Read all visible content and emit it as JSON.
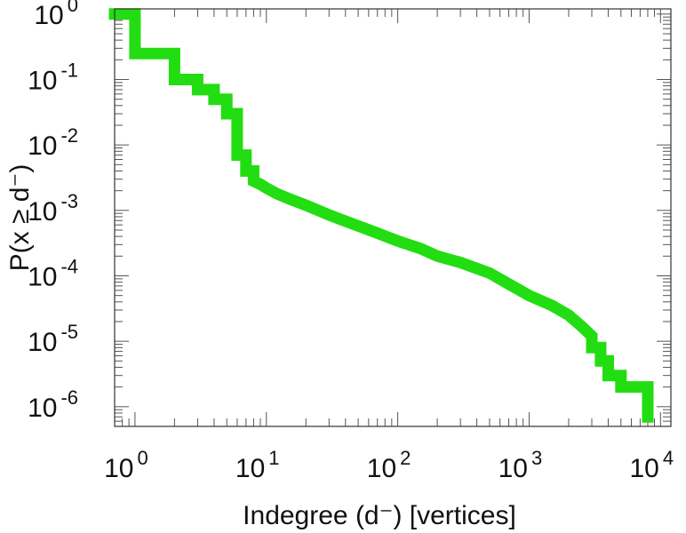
{
  "chart_data": {
    "type": "line",
    "xlabel": "Indegree (d⁻) [vertices]",
    "ylabel": "P(x ≥ d⁻)",
    "xscale": "log",
    "yscale": "log",
    "xlim": [
      0.7,
      12000
    ],
    "ylim": [
      5e-07,
      1.2
    ],
    "x_ticks": [
      {
        "value": 1,
        "base": "10",
        "exp": "0"
      },
      {
        "value": 10,
        "base": "10",
        "exp": "1"
      },
      {
        "value": 100,
        "base": "10",
        "exp": "2"
      },
      {
        "value": 1000,
        "base": "10",
        "exp": "3"
      },
      {
        "value": 10000,
        "base": "10",
        "exp": "4"
      }
    ],
    "y_ticks": [
      {
        "value": 1,
        "base": "10",
        "exp": "0"
      },
      {
        "value": 0.1,
        "base": "10",
        "exp": "-1"
      },
      {
        "value": 0.01,
        "base": "10",
        "exp": "-2"
      },
      {
        "value": 0.001,
        "base": "10",
        "exp": "-3"
      },
      {
        "value": 0.0001,
        "base": "10",
        "exp": "-4"
      },
      {
        "value": 1e-05,
        "base": "10",
        "exp": "-5"
      },
      {
        "value": 1e-06,
        "base": "10",
        "exp": "-6"
      }
    ],
    "grid": false,
    "legend": "none",
    "series": [
      {
        "color": "#22dd11",
        "x": [
          0.7,
          1,
          1,
          2,
          2,
          3,
          3,
          4,
          4,
          5,
          5,
          6,
          6,
          7,
          7,
          8,
          8,
          9,
          10,
          12,
          15,
          20,
          30,
          50,
          70,
          100,
          150,
          200,
          300,
          500,
          700,
          1000,
          1500,
          2000,
          2500,
          3000,
          3000,
          3500,
          3500,
          4000,
          4000,
          5000,
          5000,
          8000,
          8000
        ],
        "y": [
          1,
          1,
          0.25,
          0.25,
          0.1,
          0.1,
          0.07,
          0.07,
          0.05,
          0.05,
          0.03,
          0.03,
          0.007,
          0.007,
          0.004,
          0.004,
          0.0028,
          0.0025,
          0.0022,
          0.0018,
          0.0015,
          0.0012,
          0.00085,
          0.00058,
          0.00045,
          0.00034,
          0.00026,
          0.0002,
          0.00016,
          0.00011,
          7.5e-05,
          5e-05,
          3.5e-05,
          2.5e-05,
          1.7e-05,
          1.2e-05,
          8e-06,
          8e-06,
          5e-06,
          5e-06,
          3e-06,
          3e-06,
          2e-06,
          2e-06,
          7e-07
        ]
      }
    ]
  }
}
